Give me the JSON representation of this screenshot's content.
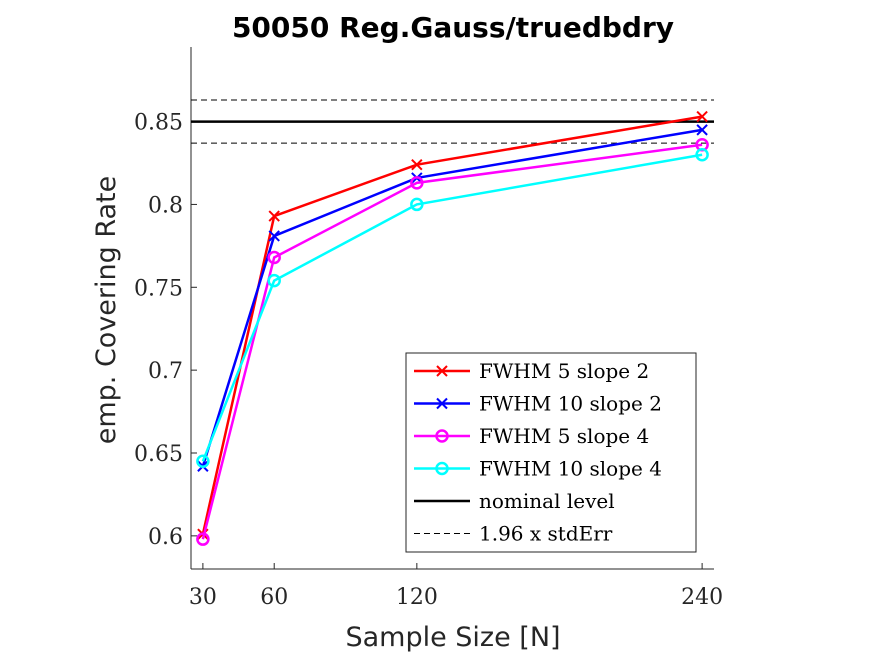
{
  "chart_data": {
    "type": "line",
    "title": "50050 Reg.Gauss/truedbdry",
    "xlabel": "Sample Size [N]",
    "ylabel": "emp. Covering Rate",
    "x": [
      30,
      60,
      120,
      240
    ],
    "x_ticks": [
      "30",
      "60",
      "120",
      "240"
    ],
    "y_ticks": [
      "0.6",
      "0.65",
      "0.7",
      "0.75",
      "0.8",
      "0.85"
    ],
    "xlim": [
      25,
      245
    ],
    "ylim": [
      0.58,
      0.895
    ],
    "series": [
      {
        "name": "FWHM 5 slope 2",
        "values": [
          0.601,
          0.793,
          0.824,
          0.853
        ],
        "color": "#ff0000",
        "marker": "x"
      },
      {
        "name": "FWHM 10 slope 2",
        "values": [
          0.642,
          0.781,
          0.816,
          0.845
        ],
        "color": "#0000ff",
        "marker": "x"
      },
      {
        "name": "FWHM 5 slope 4",
        "values": [
          0.598,
          0.768,
          0.813,
          0.836
        ],
        "color": "#ff00ff",
        "marker": "o"
      },
      {
        "name": "FWHM 10 slope 4",
        "values": [
          0.645,
          0.754,
          0.8,
          0.83
        ],
        "color": "#00ffff",
        "marker": "o"
      }
    ],
    "reference_lines": [
      {
        "name": "nominal level",
        "value": 0.85,
        "style": "solid",
        "color": "#000000"
      },
      {
        "name": "1.96 x stdErr",
        "values": [
          0.837,
          0.863
        ],
        "style": "dashed",
        "color": "#000000"
      }
    ],
    "legend_position": "bottom-right",
    "grid": false
  }
}
